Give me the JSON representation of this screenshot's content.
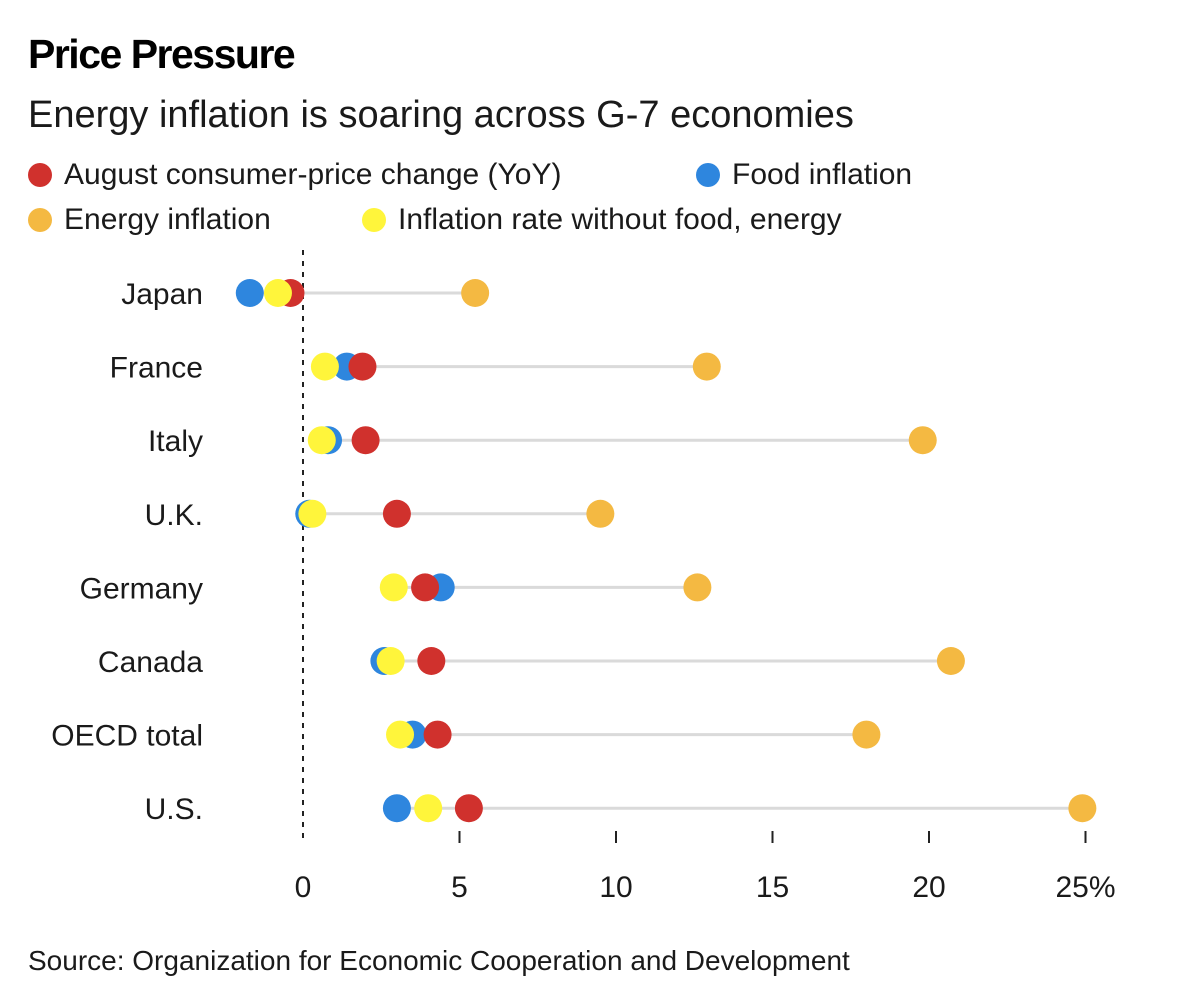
{
  "title": "Price Pressure",
  "subtitle": "Energy inflation is soaring across G-7 economies",
  "source": "Source: Organization for Economic Cooperation and Development",
  "legend": [
    {
      "label": "August consumer-price change (YoY)",
      "color": "#d0312d"
    },
    {
      "label": "Food inflation",
      "color": "#2e86de"
    },
    {
      "label": "Energy inflation",
      "color": "#f4b942"
    },
    {
      "label": "Inflation rate without food, energy",
      "color": "#fff53b"
    }
  ],
  "chart_data": {
    "type": "scatter",
    "orientation": "horizontal dot plot",
    "categories": [
      "Japan",
      "France",
      "Italy",
      "U.K.",
      "Germany",
      "Canada",
      "OECD total",
      "U.S."
    ],
    "series": [
      {
        "name": "Energy inflation",
        "color": "#f4b942",
        "values": [
          5.5,
          12.9,
          19.8,
          9.5,
          12.6,
          20.7,
          18.0,
          24.9
        ]
      },
      {
        "name": "Food inflation",
        "color": "#2e86de",
        "values": [
          -1.7,
          1.4,
          0.8,
          0.2,
          4.4,
          2.6,
          3.5,
          3.0
        ]
      },
      {
        "name": "August consumer-price change (YoY)",
        "color": "#d0312d",
        "values": [
          -0.4,
          1.9,
          2.0,
          3.0,
          3.9,
          4.1,
          4.3,
          5.3
        ]
      },
      {
        "name": "Inflation rate without food, energy",
        "color": "#fff53b",
        "values": [
          -0.8,
          0.7,
          0.6,
          0.3,
          2.9,
          2.8,
          3.1,
          4.0
        ]
      }
    ],
    "xlim": [
      -2.5,
      26
    ],
    "xticks": [
      0,
      5,
      10,
      15,
      20,
      25
    ],
    "xtick_labels": [
      "0",
      "5",
      "10",
      "15",
      "20",
      "25%"
    ],
    "zero_line": "dashed",
    "grid": false,
    "legend_position": "top"
  }
}
